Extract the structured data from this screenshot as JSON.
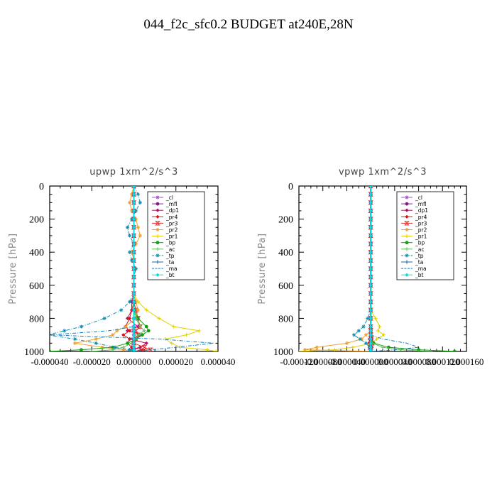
{
  "page_title": "044_f2c_sfc0.2  BUDGET at240E,28N",
  "legend_entries": [
    {
      "label": "_cl",
      "color": "#a050c8",
      "marker": "star"
    },
    {
      "label": "_mfl",
      "color": "#8a1a8a",
      "marker": "dot"
    },
    {
      "label": "_dp1",
      "color": "#b0106a",
      "marker": "diamond"
    },
    {
      "label": "_pr4",
      "color": "#e01010",
      "marker": "diamond"
    },
    {
      "label": "_pr3",
      "color": "#e03030",
      "marker": "hourglass"
    },
    {
      "label": "_pr2",
      "color": "#f0a030",
      "marker": "star"
    },
    {
      "label": "_pr1",
      "color": "#e0d000",
      "marker": "plus"
    },
    {
      "label": "_bp",
      "color": "#10a010",
      "marker": "dot"
    },
    {
      "label": "_ac",
      "color": "#60c060",
      "marker": "plus"
    },
    {
      "label": "_tp",
      "color": "#1090b0",
      "marker": "star"
    },
    {
      "label": "_ta",
      "color": "#2060a0",
      "marker": "plus"
    },
    {
      "label": "_ma",
      "color": "#1080c0",
      "marker": "none"
    },
    {
      "label": "_bt",
      "color": "#00e0e0",
      "marker": "diamond"
    }
  ],
  "chart_data": [
    {
      "type": "line",
      "title": "upwp   1xm^2/s^3",
      "ylabel": "Pressure [hPa]",
      "xlabel": "",
      "ylim": [
        1000,
        0
      ],
      "xlim": [
        -4e-05,
        4e-05
      ],
      "yticks": [
        "0",
        "200",
        "400",
        "600",
        "800",
        "1000"
      ],
      "xticks": [
        "-0.000040",
        "-0.000020",
        "0.000000",
        "0.000020",
        "0.000040"
      ],
      "grid": false,
      "legend_position": "top-right",
      "y": [
        0,
        50,
        100,
        150,
        200,
        250,
        300,
        350,
        400,
        450,
        500,
        550,
        600,
        650,
        700,
        750,
        800,
        850,
        875,
        900,
        925,
        950,
        975,
        990,
        1000
      ],
      "series": [
        {
          "name": "_cl",
          "values": [
            0,
            0,
            0,
            0,
            0,
            0,
            0,
            0,
            0,
            0,
            0,
            0,
            0,
            0,
            0,
            0,
            0,
            0,
            0,
            0,
            0,
            0,
            0,
            0,
            0
          ]
        },
        {
          "name": "_mfl",
          "values": [
            0,
            0,
            0,
            0,
            0,
            0,
            0,
            0,
            0,
            0,
            0,
            0,
            0,
            0,
            0,
            0,
            0,
            0,
            0,
            0,
            0,
            0,
            0,
            0,
            0
          ]
        },
        {
          "name": "_dp1",
          "values": [
            0,
            0,
            0,
            0,
            0,
            0,
            0,
            0,
            0,
            0,
            0,
            0,
            0,
            0,
            -1e-06,
            -1e-06,
            -3e-06,
            2e-06,
            -3e-06,
            4e-06,
            -2e-06,
            6e-06,
            3e-06,
            -2e-06,
            0
          ]
        },
        {
          "name": "_pr4",
          "values": [
            0,
            0,
            0,
            0,
            0,
            0,
            0,
            0,
            0,
            0,
            0,
            0,
            0,
            0,
            0,
            -1e-06,
            -2e-06,
            -4e-06,
            -2e-06,
            -5e-06,
            -2e-06,
            -3e-06,
            -1e-06,
            4e-06,
            0
          ]
        },
        {
          "name": "_pr3",
          "values": [
            0,
            0,
            0,
            0,
            0,
            0,
            0,
            0,
            0,
            0,
            0,
            0,
            0,
            0,
            0,
            1e-06,
            2e-06,
            3e-06,
            1e-06,
            2e-06,
            1e-06,
            0,
            5e-06,
            8e-06,
            0
          ]
        },
        {
          "name": "_pr2",
          "values": [
            0,
            -1e-06,
            -2e-06,
            -1e-06,
            1e-06,
            2e-06,
            3e-06,
            1e-06,
            -1e-06,
            0,
            0,
            0,
            0,
            0,
            1e-06,
            2e-06,
            1e-06,
            -4e-06,
            -8e-06,
            -1e-05,
            -1.8e-05,
            -2.8e-05,
            -1.5e-05,
            -5e-06,
            0
          ]
        },
        {
          "name": "_pr1",
          "values": [
            0,
            0,
            0,
            0,
            0,
            0,
            0,
            0,
            0,
            0,
            0,
            0,
            0,
            0,
            2e-06,
            6e-06,
            1.2e-05,
            1.9e-05,
            3.1e-05,
            2.5e-05,
            1.5e-05,
            1.8e-05,
            2.2e-05,
            3.5e-05,
            3.9e-05
          ]
        },
        {
          "name": "_bp",
          "values": [
            0,
            0,
            0,
            0,
            0,
            0,
            0,
            0,
            0,
            0,
            0,
            0,
            0,
            0,
            0,
            0,
            2e-06,
            6e-06,
            7e-06,
            4e-06,
            1e-06,
            -3e-06,
            -1e-05,
            -2.5e-05,
            -4e-05
          ]
        },
        {
          "name": "_ac",
          "values": [
            0,
            0,
            0,
            0,
            0,
            0,
            0,
            0,
            0,
            0,
            0,
            0,
            0,
            0,
            0,
            0,
            1e-06,
            3e-06,
            5e-06,
            2e-06,
            1e-06,
            -1e-06,
            -5e-06,
            -1e-05,
            -2e-05
          ]
        },
        {
          "name": "_tp",
          "values": [
            0,
            2e-06,
            3e-06,
            1e-06,
            -1e-06,
            -3e-06,
            -2e-06,
            0,
            -2e-06,
            -1e-06,
            1e-06,
            0,
            0,
            0,
            -2e-06,
            -6e-06,
            -1.4e-05,
            -2.5e-05,
            -3.3e-05,
            -4.1e-05,
            -2.8e-05,
            -1.8e-05,
            -9e-06,
            -2e-06,
            0
          ]
        },
        {
          "name": "_ta",
          "values": [
            0,
            0,
            0,
            0,
            0,
            0,
            0,
            0,
            0,
            0,
            0,
            0,
            0,
            0,
            0,
            0,
            0,
            0,
            0,
            0,
            0,
            0,
            0,
            0,
            0
          ]
        },
        {
          "name": "_ma",
          "values": [
            0,
            0,
            0,
            0,
            0,
            0,
            0,
            0,
            0,
            0,
            0,
            0,
            0,
            0,
            0,
            0,
            0,
            0,
            -1.2e-05,
            -4e-05,
            1.2e-05,
            3.8e-05,
            2e-05,
            8e-06,
            0
          ]
        },
        {
          "name": "_bt",
          "values": [
            0,
            0,
            0,
            0,
            0,
            0,
            0,
            0,
            0,
            0,
            0,
            0,
            0,
            0,
            0,
            0,
            0,
            0,
            0,
            0,
            0,
            0,
            0,
            0,
            0
          ]
        }
      ]
    },
    {
      "type": "line",
      "title": "vpwp   1xm^2/s^3",
      "ylabel": "Pressure [hPa]",
      "xlabel": "",
      "ylim": [
        1000,
        0
      ],
      "xlim": [
        -0.00012,
        0.00016
      ],
      "yticks": [
        "0",
        "200",
        "400",
        "600",
        "800",
        "1000"
      ],
      "xticks": [
        "-0.000120",
        "-0.000080",
        "-0.000040",
        "0.000000",
        "0.000040",
        "0.000080",
        "0.000120",
        "0.000160"
      ],
      "grid": false,
      "legend_position": "top-right",
      "y": [
        0,
        50,
        100,
        150,
        200,
        250,
        300,
        350,
        400,
        450,
        500,
        550,
        600,
        650,
        700,
        750,
        800,
        850,
        875,
        900,
        925,
        950,
        975,
        990,
        1000
      ],
      "series": [
        {
          "name": "_cl",
          "values": [
            0,
            0,
            0,
            0,
            0,
            0,
            0,
            0,
            0,
            0,
            0,
            0,
            0,
            0,
            0,
            0,
            0,
            0,
            0,
            0,
            0,
            0,
            0,
            0,
            0
          ]
        },
        {
          "name": "_mfl",
          "values": [
            0,
            0,
            0,
            0,
            0,
            0,
            0,
            0,
            0,
            0,
            0,
            0,
            0,
            0,
            0,
            0,
            0,
            0,
            0,
            0,
            0,
            0,
            0,
            0,
            0
          ]
        },
        {
          "name": "_dp1",
          "values": [
            0,
            0,
            0,
            0,
            0,
            0,
            0,
            0,
            0,
            0,
            0,
            0,
            0,
            0,
            0,
            0,
            0,
            0,
            0,
            0,
            2e-06,
            4e-06,
            -2e-06,
            0,
            0
          ]
        },
        {
          "name": "_pr4",
          "values": [
            0,
            0,
            0,
            0,
            0,
            0,
            0,
            0,
            0,
            0,
            0,
            0,
            0,
            0,
            0,
            0,
            0,
            0,
            0,
            0,
            -2e-06,
            -3e-06,
            2e-06,
            0,
            0
          ]
        },
        {
          "name": "_pr3",
          "values": [
            0,
            0,
            0,
            0,
            0,
            0,
            0,
            0,
            0,
            0,
            0,
            0,
            0,
            0,
            0,
            0,
            0,
            0,
            0,
            0,
            1e-06,
            2e-06,
            -1e-06,
            0,
            0
          ]
        },
        {
          "name": "_pr2",
          "values": [
            0,
            0,
            0,
            0,
            0,
            0,
            0,
            0,
            0,
            0,
            0,
            0,
            0,
            0,
            0,
            0,
            0,
            0,
            0,
            -8e-06,
            -1.5e-05,
            -4e-05,
            -9e-05,
            -0.00011,
            0
          ]
        },
        {
          "name": "_pr1",
          "values": [
            0,
            0,
            0,
            0,
            0,
            0,
            0,
            0,
            0,
            0,
            0,
            0,
            0,
            0,
            0,
            0,
            8e-06,
            1.5e-05,
            1.2e-05,
            2.2e-05,
            1e-05,
            2e-06,
            -3e-05,
            -6e-05,
            -0.00012
          ]
        },
        {
          "name": "_bp",
          "values": [
            0,
            0,
            0,
            0,
            0,
            0,
            0,
            0,
            0,
            0,
            0,
            0,
            0,
            0,
            0,
            0,
            0,
            0,
            0,
            0,
            0,
            5e-06,
            3e-05,
            8e-05,
            0.00014
          ]
        },
        {
          "name": "_ac",
          "values": [
            0,
            0,
            0,
            0,
            0,
            0,
            0,
            0,
            0,
            0,
            0,
            0,
            0,
            0,
            0,
            0,
            0,
            0,
            0,
            0,
            0,
            3e-06,
            2e-05,
            5e-05,
            0.0001
          ]
        },
        {
          "name": "_tp",
          "values": [
            0,
            0,
            0,
            0,
            0,
            0,
            0,
            0,
            0,
            0,
            0,
            0,
            0,
            0,
            0,
            0,
            -5e-06,
            -1.2e-05,
            -2e-05,
            -2.8e-05,
            -1.8e-05,
            -8e-06,
            -2e-06,
            0,
            0
          ]
        },
        {
          "name": "_ta",
          "values": [
            0,
            0,
            0,
            0,
            0,
            0,
            0,
            0,
            0,
            0,
            0,
            0,
            0,
            0,
            0,
            0,
            0,
            0,
            0,
            0,
            0,
            0,
            0,
            0,
            0
          ]
        },
        {
          "name": "_ma",
          "values": [
            0,
            0,
            0,
            0,
            0,
            0,
            0,
            0,
            0,
            0,
            0,
            0,
            0,
            0,
            0,
            0,
            0,
            0,
            0,
            0,
            2e-05,
            6e-05,
            8e-05,
            4e-05,
            0
          ]
        },
        {
          "name": "_bt",
          "values": [
            0,
            0,
            0,
            0,
            0,
            0,
            0,
            0,
            0,
            0,
            0,
            0,
            0,
            0,
            0,
            0,
            0,
            0,
            0,
            0,
            0,
            0,
            0,
            0,
            0
          ]
        }
      ]
    }
  ]
}
